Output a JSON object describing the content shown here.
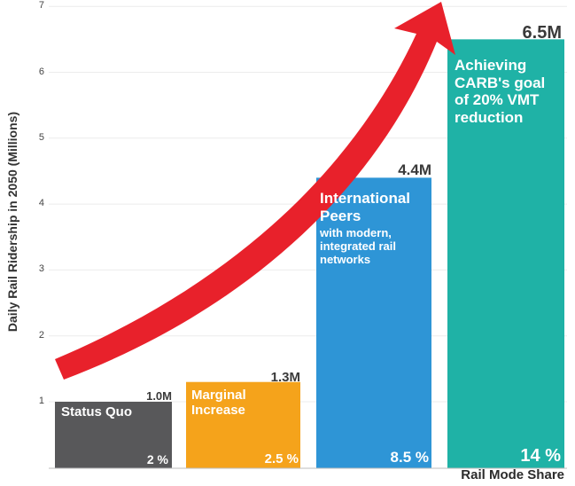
{
  "chart_data": {
    "type": "bar",
    "ylabel": "Daily Rail Ridership in 2050 (Millions)",
    "xlabel": "Rail Mode Share",
    "ylim": [
      0.6,
      7
    ],
    "yticks": [
      "1",
      "2",
      "3",
      "4",
      "5",
      "6",
      "7"
    ],
    "grid": true,
    "bars": [
      {
        "value": 1.0,
        "value_label": "1.0M",
        "title": "Status Quo",
        "subtitle": "",
        "share": "2 %",
        "color": "#58585a"
      },
      {
        "value": 1.3,
        "value_label": "1.3M",
        "title": "Marginal Increase",
        "subtitle": "",
        "share": "2.5 %",
        "color": "#f5a31b"
      },
      {
        "value": 4.4,
        "value_label": "4.4M",
        "title": "International Peers",
        "subtitle": "with modern, integrated rail networks",
        "share": "8.5 %",
        "color": "#2e95d6"
      },
      {
        "value": 6.5,
        "value_label": "6.5M",
        "title": "Achieving CARB's goal of 20% VMT reduction",
        "subtitle": "",
        "share": "14 %",
        "color": "#1fb2a6"
      }
    ],
    "arrow_color": "#e8212b"
  }
}
